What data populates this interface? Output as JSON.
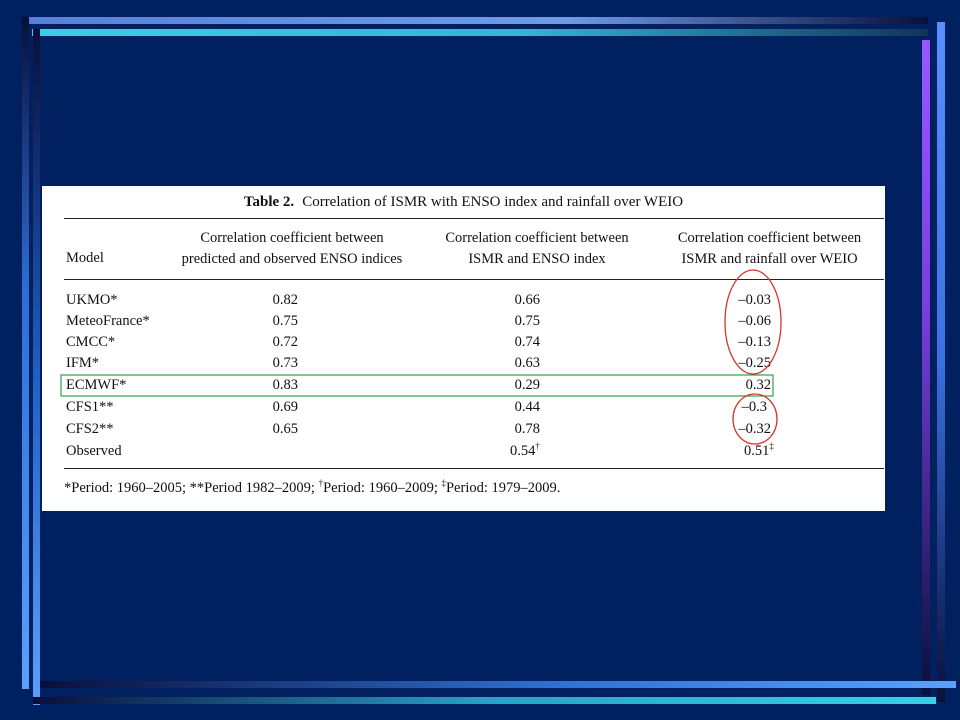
{
  "table": {
    "caption_label": "Table 2.",
    "caption_text": "Correlation of ISMR with ENSO index and rainfall over WEIO",
    "headers": {
      "model": "Model",
      "col1_line1": "Correlation coefficient between",
      "col1_line2": "predicted and observed ENSO indices",
      "col2_line1": "Correlation coefficient between",
      "col2_line2": "ISMR and ENSO index",
      "col3_line1": "Correlation coefficient between",
      "col3_line2": "ISMR and rainfall over WEIO"
    },
    "rows": [
      {
        "model": "UKMO*",
        "c1": "0.82",
        "c2": "0.66",
        "c3": "–0.03"
      },
      {
        "model": "MeteoFrance*",
        "c1": "0.75",
        "c2": "0.75",
        "c3": "–0.06"
      },
      {
        "model": "CMCC*",
        "c1": "0.72",
        "c2": "0.74",
        "c3": "–0.13"
      },
      {
        "model": "IFM*",
        "c1": "0.73",
        "c2": "0.63",
        "c3": "–0.25"
      },
      {
        "model": "ECMWF*",
        "c1": "0.83",
        "c2": "0.29",
        "c3": "0.32"
      },
      {
        "model": "CFS1**",
        "c1": "0.69",
        "c2": "0.44",
        "c3": "–0.3"
      },
      {
        "model": "CFS2**",
        "c1": "0.65",
        "c2": "0.78",
        "c3": "–0.32"
      },
      {
        "model": "Observed",
        "c1": "",
        "c2": "0.54",
        "c2_mark": "†",
        "c3": "0.51",
        "c3_mark": "‡"
      }
    ],
    "footnote": {
      "p1": "*Period: 1960–2005; **Period 1982–2009; ",
      "m1": "†",
      "p2": "Period: 1960–2009; ",
      "m2": "‡",
      "p3": "Period: 1979–2009."
    }
  },
  "annotations": {
    "highlight_color": "#2e9e4f",
    "circle_color": "#d9342b"
  }
}
